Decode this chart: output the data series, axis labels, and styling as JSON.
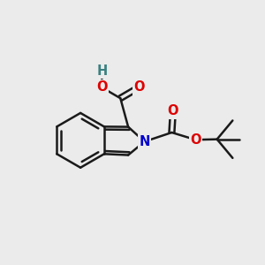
{
  "bg_color": "#ebebeb",
  "bond_color": "#1a1a1a",
  "bond_width": 1.8,
  "atom_colors": {
    "O": "#dd0000",
    "N": "#0000cc",
    "H": "#3a8080",
    "C": "#1a1a1a"
  },
  "font_size_atom": 10.5,
  "fig_size": [
    3.0,
    3.0
  ],
  "dpi": 100,
  "xlim": [
    0,
    10
  ],
  "ylim": [
    0,
    10
  ]
}
